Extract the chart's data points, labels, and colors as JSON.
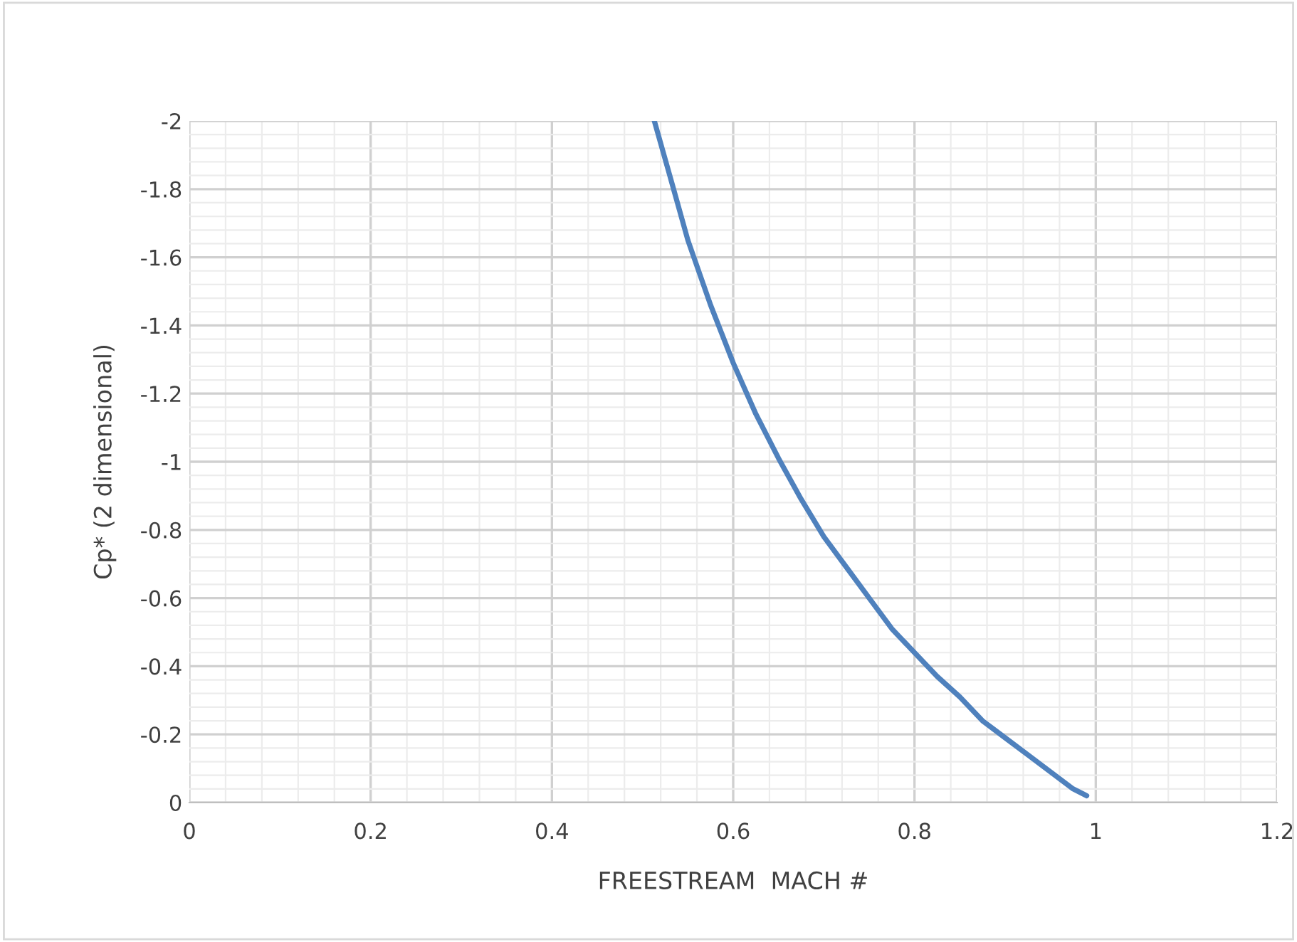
{
  "chart_data": {
    "type": "line",
    "xlabel": "FREESTREAM  MACH #",
    "ylabel": "Cp* (2 dimensional)",
    "x": [
      0.513,
      0.53,
      0.55,
      0.575,
      0.6,
      0.625,
      0.65,
      0.675,
      0.7,
      0.725,
      0.75,
      0.775,
      0.8,
      0.825,
      0.85,
      0.875,
      0.9,
      0.925,
      0.95,
      0.975,
      0.99
    ],
    "series": [
      {
        "color": "#4f81bd",
        "values": [
          -2.0,
          -1.84,
          -1.65,
          -1.46,
          -1.29,
          -1.14,
          -1.01,
          -0.89,
          -0.78,
          -0.69,
          -0.6,
          -0.51,
          -0.44,
          -0.37,
          -0.31,
          -0.24,
          -0.19,
          -0.14,
          -0.09,
          -0.04,
          -0.02
        ]
      }
    ],
    "xlim": [
      0,
      1.2
    ],
    "xticks": [
      0,
      0.2,
      0.4,
      0.6,
      0.8,
      1,
      1.2
    ],
    "ylim": [
      0,
      -2
    ],
    "yticks": [
      0,
      -0.2,
      -0.4,
      -0.6,
      -0.8,
      -1,
      -1.2,
      -1.4,
      -1.6,
      -1.8,
      -2
    ],
    "grid": true,
    "marker": "none",
    "line_style": "solid"
  }
}
